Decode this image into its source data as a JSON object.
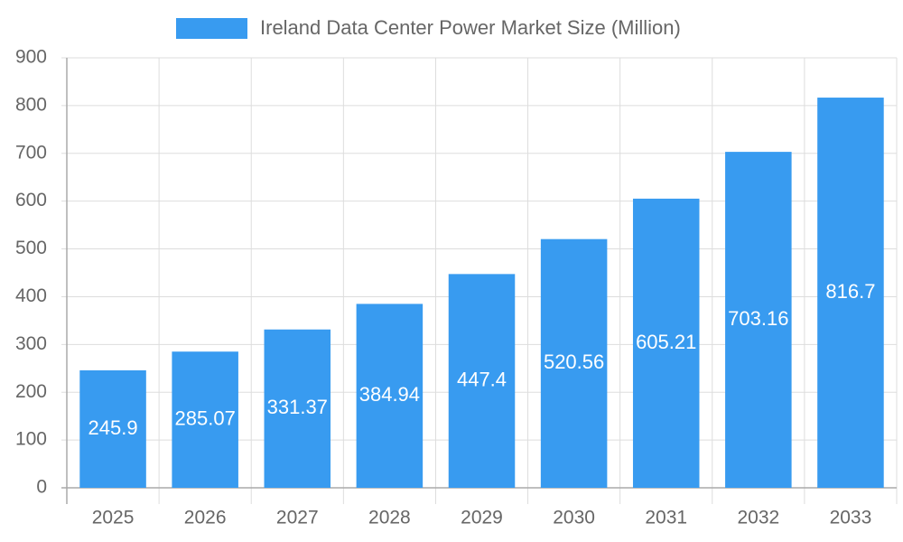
{
  "chart_data": {
    "type": "bar",
    "series": [
      {
        "name": "Ireland Data Center Power Market Size (Million)",
        "color": "#389bf0",
        "values": [
          245.9,
          285.07,
          331.37,
          384.94,
          447.4,
          520.56,
          605.21,
          703.16,
          816.7
        ]
      }
    ],
    "categories": [
      "2025",
      "2026",
      "2027",
      "2028",
      "2029",
      "2030",
      "2031",
      "2032",
      "2033"
    ],
    "ylim": [
      0,
      900
    ],
    "yticks": [
      0,
      100,
      200,
      300,
      400,
      500,
      600,
      700,
      800,
      900
    ],
    "grid": true
  }
}
